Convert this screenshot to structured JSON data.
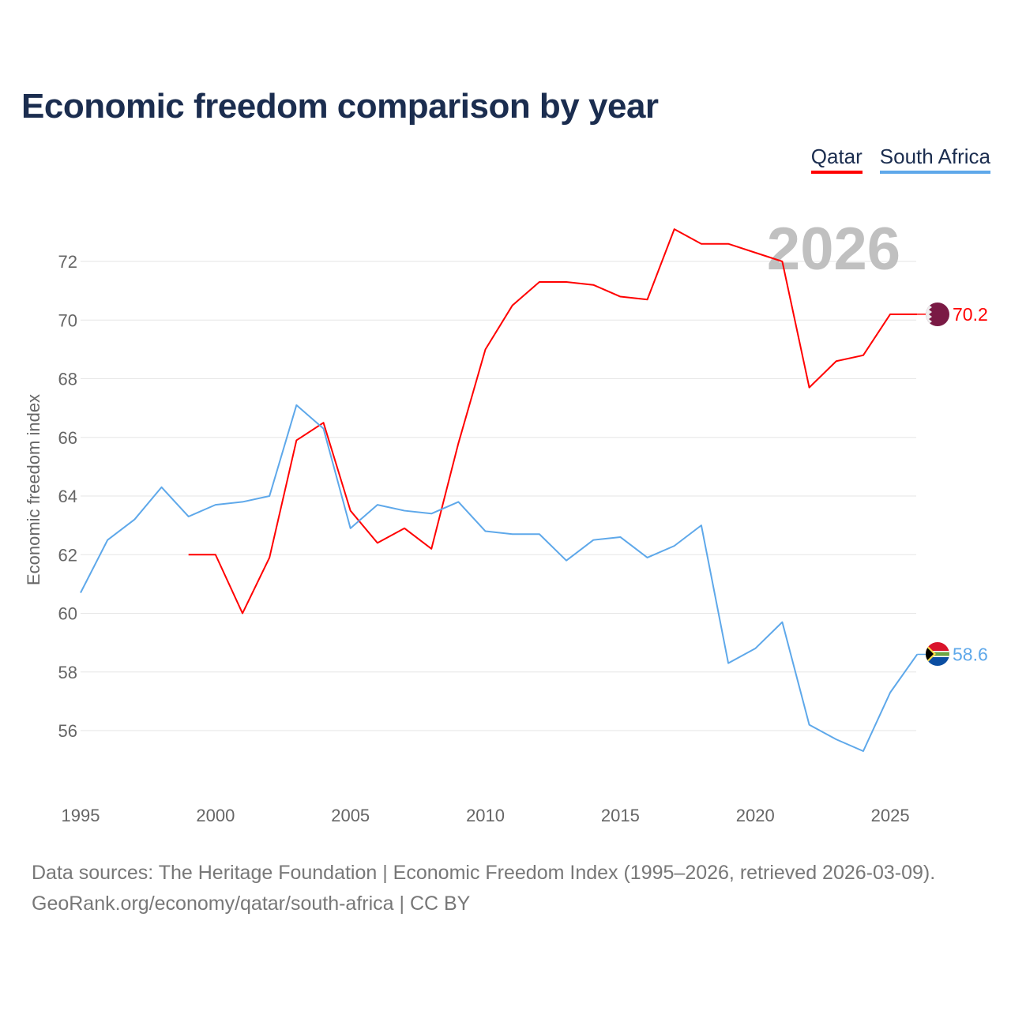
{
  "chart_data": {
    "type": "line",
    "title": "Economic freedom comparison by year",
    "ylabel": "Economic freedom index",
    "xlabel": "",
    "xlim": [
      1995,
      2026
    ],
    "ylim": [
      54,
      74
    ],
    "yticks": [
      56,
      58,
      60,
      62,
      64,
      66,
      68,
      70,
      72
    ],
    "xticks": [
      1995,
      2000,
      2005,
      2010,
      2015,
      2020,
      2025
    ],
    "grid": true,
    "legend_position": "top-right",
    "year_watermark": "2026",
    "series": [
      {
        "name": "Qatar",
        "color": "#ff0000",
        "end_label": "70.2",
        "x": [
          1999,
          2000,
          2001,
          2002,
          2003,
          2004,
          2005,
          2006,
          2007,
          2008,
          2009,
          2010,
          2011,
          2012,
          2013,
          2014,
          2015,
          2016,
          2017,
          2018,
          2019,
          2020,
          2021,
          2022,
          2023,
          2024,
          2025,
          2026
        ],
        "values": [
          62.0,
          62.0,
          60.0,
          61.9,
          65.9,
          66.5,
          63.5,
          62.4,
          62.9,
          62.2,
          65.8,
          69.0,
          70.5,
          71.3,
          71.3,
          71.2,
          70.8,
          70.7,
          73.1,
          72.6,
          72.6,
          72.3,
          72.0,
          67.7,
          68.6,
          68.8,
          70.2,
          70.2
        ]
      },
      {
        "name": "South Africa",
        "color": "#5ea8ea",
        "end_label": "58.6",
        "x": [
          1995,
          1996,
          1997,
          1998,
          1999,
          2000,
          2001,
          2002,
          2003,
          2004,
          2005,
          2006,
          2007,
          2008,
          2009,
          2010,
          2011,
          2012,
          2013,
          2014,
          2015,
          2016,
          2017,
          2018,
          2019,
          2020,
          2021,
          2022,
          2023,
          2024,
          2025,
          2026
        ],
        "values": [
          60.7,
          62.5,
          63.2,
          64.3,
          63.3,
          63.7,
          63.8,
          64.0,
          67.1,
          66.3,
          62.9,
          63.7,
          63.5,
          63.4,
          63.8,
          62.8,
          62.7,
          62.7,
          61.8,
          62.5,
          62.6,
          61.9,
          62.3,
          63.0,
          58.3,
          58.8,
          59.7,
          56.2,
          55.7,
          55.3,
          57.3,
          58.6
        ]
      }
    ]
  },
  "footer": {
    "line1": "Data sources: The Heritage Foundation | Economic Freedom Index (1995–2026, retrieved 2026-03-09).",
    "line2": "GeoRank.org/economy/qatar/south-africa | CC BY"
  }
}
